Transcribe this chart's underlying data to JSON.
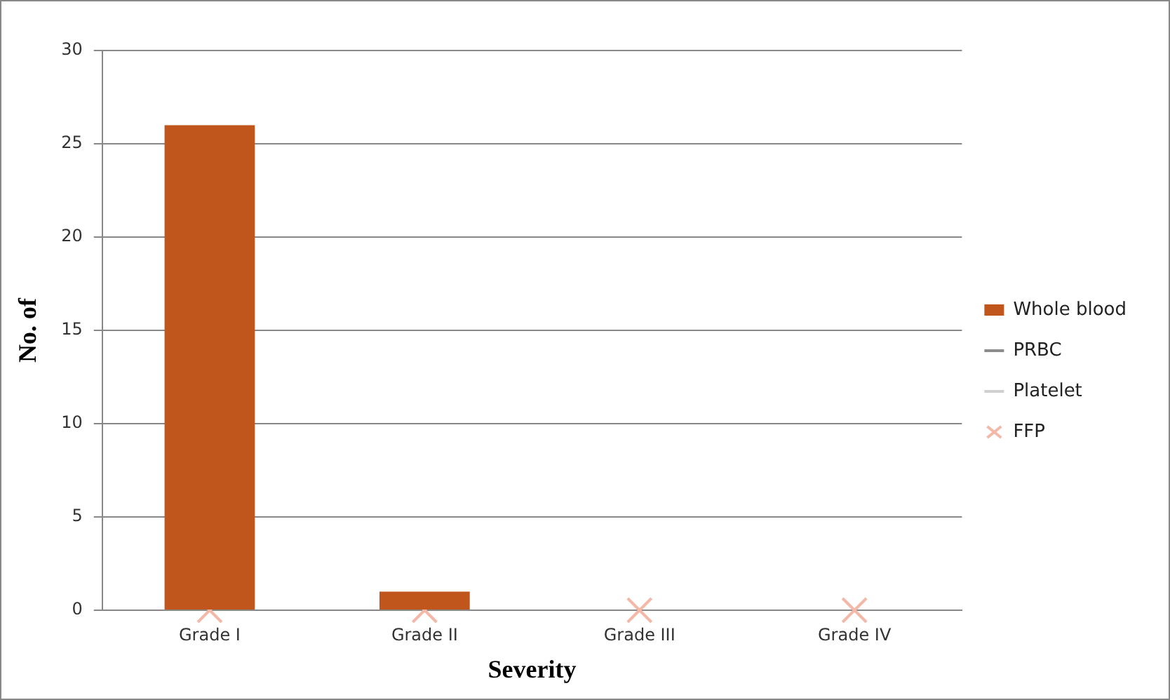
{
  "chart_data": {
    "type": "bar",
    "xlabel": "Severity",
    "ylabel": "No. of",
    "categories": [
      "Grade I",
      "Grade II",
      "Grade III",
      "Grade IV"
    ],
    "series": [
      {
        "name": "Whole blood",
        "color": "#c0561b",
        "values": [
          26,
          1,
          0,
          0
        ]
      },
      {
        "name": "PRBC",
        "type": "line",
        "marker": "none",
        "color": "#8c8c8c",
        "values": [
          null,
          null,
          null,
          null
        ]
      },
      {
        "name": "Platelet",
        "type": "line",
        "marker": "none",
        "color": "#d0d0d0",
        "values": [
          null,
          null,
          null,
          null
        ]
      },
      {
        "name": "FFP",
        "type": "scatter",
        "marker": "cross",
        "color": "#f4b8a8",
        "values": [
          0,
          0,
          0,
          0
        ]
      }
    ],
    "ylim": [
      0,
      30
    ],
    "yticks": [
      0,
      5,
      10,
      15,
      20,
      25,
      30
    ],
    "grid": "y",
    "legend": "right"
  }
}
